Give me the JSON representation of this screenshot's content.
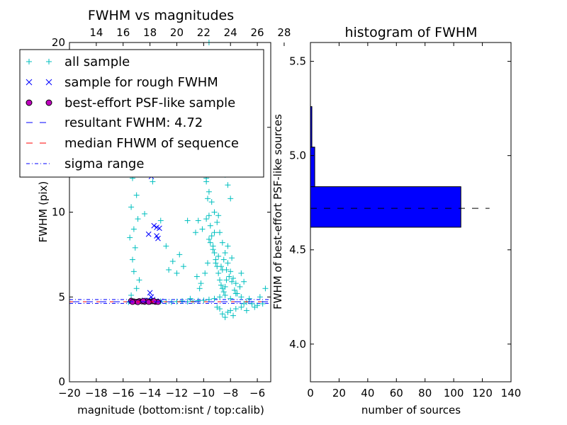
{
  "chart_data": [
    {
      "type": "scatter",
      "title": "FWHM vs magnitudes",
      "xlabel": "magnitude (bottom:isnt / top:calib)",
      "ylabel": "FWHM (pix)",
      "xlim": [
        -20,
        -5
      ],
      "ylim": [
        0,
        20
      ],
      "xticks": [
        "−20",
        "−18",
        "−16",
        "−14",
        "−12",
        "−10",
        "−8",
        "−6"
      ],
      "xtick_values": [
        -20,
        -18,
        -16,
        -14,
        -12,
        -10,
        -8,
        -6
      ],
      "xticks_top": [
        "14",
        "16",
        "18",
        "20",
        "22",
        "24",
        "26",
        "28"
      ],
      "xtick_top_values": [
        -18,
        -16,
        -14,
        -12,
        -10,
        -8,
        -6,
        -4
      ],
      "yticks": [
        "0",
        "5",
        "10",
        "15",
        "20"
      ],
      "ytick_values": [
        0,
        5,
        10,
        15,
        20
      ],
      "legend": {
        "placement": "top-left",
        "entries": [
          "all sample",
          "sample for rough FWHM",
          "best-effort PSF-like sample",
          "resultant FWHM: 4.72",
          "median FHWM of sequence",
          "sigma range"
        ]
      },
      "colors": {
        "all_sample": "#00bfbf",
        "rough_sample": "#0000ff",
        "psf_sample_fill": "#bf00bf",
        "resultant_line": "#0000ff",
        "median_line": "#ff0000",
        "sigma_line": "#0000ff"
      },
      "series": [
        {
          "name": "all sample",
          "marker": "+",
          "points": [
            [
              -15.6,
              4.7
            ],
            [
              -15.2,
              4.75
            ],
            [
              -14.8,
              4.72
            ],
            [
              -14.4,
              4.7
            ],
            [
              -14.0,
              4.73
            ],
            [
              -13.6,
              4.71
            ],
            [
              -13.2,
              4.74
            ],
            [
              -12.8,
              4.72
            ],
            [
              -12.4,
              4.7
            ],
            [
              -12.0,
              4.73
            ],
            [
              -11.6,
              4.76
            ],
            [
              -11.2,
              4.72
            ],
            [
              -10.8,
              4.75
            ],
            [
              -10.4,
              4.78
            ],
            [
              -10.0,
              4.8
            ],
            [
              -9.6,
              4.85
            ],
            [
              -9.2,
              4.9
            ],
            [
              -8.8,
              5.0
            ],
            [
              -8.4,
              5.1
            ],
            [
              -8.0,
              4.9
            ],
            [
              -7.6,
              5.2
            ],
            [
              -7.2,
              5.0
            ],
            [
              -6.8,
              4.7
            ],
            [
              -6.4,
              4.6
            ],
            [
              -6.0,
              4.5
            ],
            [
              -5.6,
              4.6
            ],
            [
              -8.8,
              4.3
            ],
            [
              -8.6,
              4.0
            ],
            [
              -8.4,
              3.8
            ],
            [
              -8.2,
              4.1
            ],
            [
              -8.0,
              4.2
            ],
            [
              -7.8,
              3.9
            ],
            [
              -9.0,
              4.4
            ],
            [
              -7.6,
              4.3
            ],
            [
              -7.2,
              4.4
            ],
            [
              -6.8,
              4.2
            ],
            [
              -15.4,
              5.1
            ],
            [
              -15.0,
              5.5
            ],
            [
              -14.8,
              6.0
            ],
            [
              -15.2,
              6.5
            ],
            [
              -15.3,
              7.2
            ],
            [
              -15.1,
              7.9
            ],
            [
              -15.5,
              8.5
            ],
            [
              -15.2,
              9.0
            ],
            [
              -14.9,
              9.6
            ],
            [
              -15.4,
              10.3
            ],
            [
              -15.0,
              11.0
            ],
            [
              -15.3,
              12.0
            ],
            [
              -14.7,
              12.8
            ],
            [
              -15.1,
              13.3
            ],
            [
              -14.4,
              9.9
            ],
            [
              -13.2,
              9.5
            ],
            [
              -14.0,
              12.5
            ],
            [
              -13.8,
              11.8
            ],
            [
              -12.8,
              8.0
            ],
            [
              -12.6,
              6.6
            ],
            [
              -12.3,
              7.1
            ],
            [
              -12.0,
              6.4
            ],
            [
              -11.8,
              7.5
            ],
            [
              -11.5,
              6.8
            ],
            [
              -11.2,
              9.5
            ],
            [
              -11.0,
              12.8
            ],
            [
              -10.8,
              13.4
            ],
            [
              -10.6,
              8.8
            ],
            [
              -10.4,
              9.5
            ],
            [
              -10.5,
              6.2
            ],
            [
              -10.3,
              5.5
            ],
            [
              -10.2,
              5.8
            ],
            [
              -10.0,
              12.5
            ],
            [
              -9.9,
              13.2
            ],
            [
              -9.8,
              11.8
            ],
            [
              -9.7,
              10.8
            ],
            [
              -9.6,
              9.8
            ],
            [
              -9.5,
              9.2
            ],
            [
              -9.4,
              8.6
            ],
            [
              -9.3,
              8.0
            ],
            [
              -9.2,
              7.6
            ],
            [
              -9.1,
              7.2
            ],
            [
              -9.0,
              6.8
            ],
            [
              -8.9,
              6.4
            ],
            [
              -8.8,
              6.0
            ],
            [
              -8.7,
              5.7
            ],
            [
              -8.6,
              5.5
            ],
            [
              -8.5,
              5.3
            ],
            [
              -8.4,
              5.6
            ],
            [
              -8.3,
              6.0
            ],
            [
              -9.8,
              12.0
            ],
            [
              -9.6,
              11.2
            ],
            [
              -9.4,
              10.6
            ],
            [
              -9.2,
              10.0
            ],
            [
              -9.0,
              9.4
            ],
            [
              -8.8,
              8.8
            ],
            [
              -8.6,
              8.2
            ],
            [
              -8.4,
              7.6
            ],
            [
              -8.2,
              7.0
            ],
            [
              -8.0,
              6.5
            ],
            [
              -7.8,
              6.1
            ],
            [
              -7.6,
              5.8
            ],
            [
              -9.5,
              8.2
            ],
            [
              -9.3,
              7.8
            ],
            [
              -9.1,
              7.0
            ],
            [
              -8.9,
              7.4
            ],
            [
              -8.7,
              6.8
            ],
            [
              -8.5,
              7.2
            ],
            [
              -8.3,
              6.6
            ],
            [
              -8.1,
              6.2
            ],
            [
              -7.9,
              5.9
            ],
            [
              -7.7,
              5.4
            ],
            [
              -7.5,
              5.2
            ],
            [
              -7.3,
              5.6
            ],
            [
              -9.7,
              7.0
            ],
            [
              -9.9,
              6.4
            ],
            [
              -10.1,
              9.0
            ],
            [
              -9.8,
              9.6
            ],
            [
              -9.6,
              8.4
            ],
            [
              -9.2,
              8.8
            ],
            [
              -8.9,
              9.8
            ],
            [
              -8.6,
              6.6
            ],
            [
              -8.2,
              8.0
            ],
            [
              -7.9,
              7.3
            ],
            [
              -7.2,
              6.4
            ],
            [
              -7.0,
              5.9
            ],
            [
              -9.5,
              18.9
            ],
            [
              -9.6,
              20.0
            ],
            [
              -9.8,
              15.8
            ],
            [
              -9.4,
              14.6
            ],
            [
              -10.2,
              15.0
            ],
            [
              -9.0,
              14.2
            ],
            [
              -8.6,
              13.0
            ],
            [
              -8.4,
              12.2
            ],
            [
              -9.2,
              13.6
            ],
            [
              -10.4,
              16.1
            ],
            [
              -8.2,
              11.6
            ],
            [
              -8.0,
              10.8
            ],
            [
              -5.4,
              5.5
            ],
            [
              -5.8,
              5.0
            ],
            [
              -6.2,
              4.4
            ],
            [
              -6.6,
              4.9
            ],
            [
              -7.0,
              4.6
            ],
            [
              -11.0,
              4.9
            ]
          ]
        },
        {
          "name": "sample for rough FWHM",
          "marker": "x",
          "points": [
            [
              -13.9,
              12.1
            ],
            [
              -13.7,
              9.2
            ],
            [
              -13.5,
              9.1
            ],
            [
              -13.3,
              9.05
            ],
            [
              -13.4,
              8.45
            ],
            [
              -13.5,
              8.6
            ],
            [
              -14.1,
              8.7
            ],
            [
              -14.0,
              5.25
            ],
            [
              -13.9,
              5.0
            ],
            [
              -13.8,
              4.85
            ],
            [
              -14.2,
              4.8
            ],
            [
              -13.6,
              4.75
            ],
            [
              -14.4,
              4.8
            ],
            [
              -13.2,
              4.75
            ]
          ]
        },
        {
          "name": "best-effort PSF-like sample",
          "marker": "o",
          "points": [
            [
              -15.4,
              4.78
            ],
            [
              -15.2,
              4.74
            ],
            [
              -15.0,
              4.72
            ],
            [
              -14.8,
              4.76
            ],
            [
              -14.6,
              4.73
            ],
            [
              -14.4,
              4.71
            ],
            [
              -14.2,
              4.75
            ],
            [
              -14.0,
              4.72
            ],
            [
              -13.8,
              4.74
            ],
            [
              -13.6,
              4.71
            ],
            [
              -13.4,
              4.7
            ],
            [
              -15.3,
              4.7
            ],
            [
              -14.9,
              4.69
            ],
            [
              -14.5,
              4.77
            ],
            [
              -14.1,
              4.7
            ],
            [
              -13.7,
              4.76
            ]
          ]
        }
      ],
      "lines": [
        {
          "name": "resultant FWHM: 4.72",
          "y": 4.72,
          "style": "dashed"
        },
        {
          "name": "median FHWM of sequence",
          "y": 4.72,
          "style": "dashed"
        },
        {
          "name": "sigma range",
          "y": [
            4.62,
            4.85
          ],
          "style": "dashdot"
        }
      ]
    },
    {
      "type": "bar",
      "orientation": "horizontal",
      "title": "histogram of FWHM",
      "xlabel": "number of sources",
      "ylabel": "FWHM of best-effort PSF-like sources",
      "xlim": [
        0,
        140
      ],
      "ylim": [
        3.8,
        5.6
      ],
      "xticks": [
        "0",
        "20",
        "40",
        "60",
        "80",
        "100",
        "120",
        "140"
      ],
      "xtick_values": [
        0,
        20,
        40,
        60,
        80,
        100,
        120,
        140
      ],
      "yticks": [
        "4.0",
        "4.5",
        "5.0",
        "5.5"
      ],
      "ytick_values": [
        4.0,
        4.5,
        5.0,
        5.5
      ],
      "bar_color": "#0000ff",
      "bins": [
        {
          "from": 4.62,
          "to": 4.835,
          "count": 105
        },
        {
          "from": 4.835,
          "to": 5.045,
          "count": 3
        },
        {
          "from": 5.045,
          "to": 5.26,
          "count": 1
        }
      ],
      "lines": [
        {
          "y": 4.72,
          "x_to": 125,
          "style": "dashed"
        }
      ]
    }
  ]
}
